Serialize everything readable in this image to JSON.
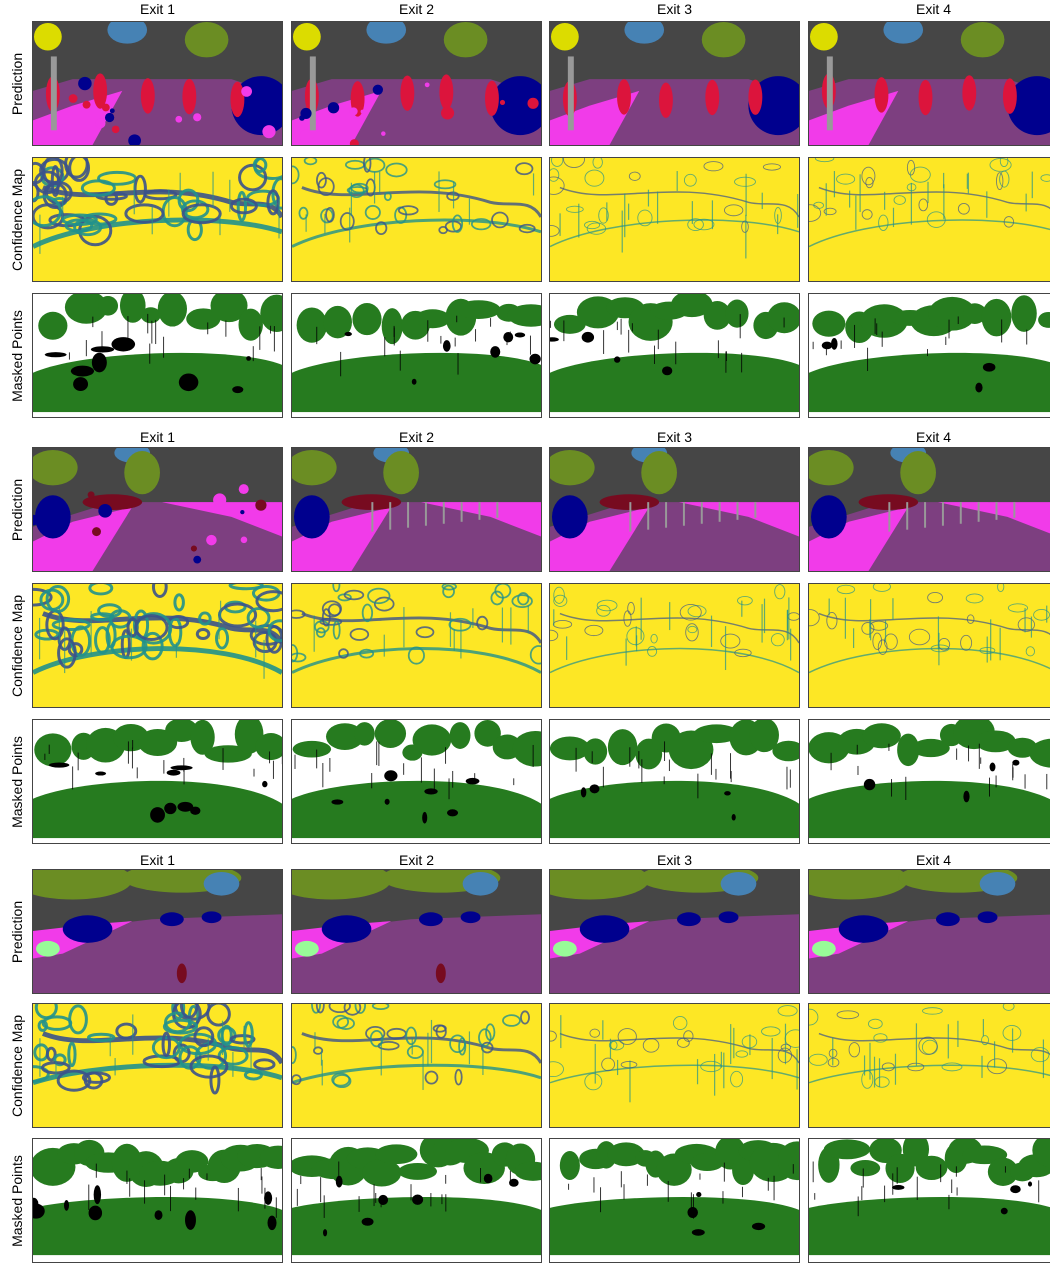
{
  "blocks": [
    {
      "exit_titles": [
        "Exit 1",
        "Exit 2",
        "Exit 3",
        "Exit 4"
      ],
      "row_labels": [
        "Prediction",
        "Confidence Map",
        "Masked Points"
      ]
    },
    {
      "exit_titles": [
        "Exit 1",
        "Exit 2",
        "Exit 3",
        "Exit 4"
      ],
      "row_labels": [
        "Prediction",
        "Confidence Map",
        "Masked Points"
      ]
    },
    {
      "exit_titles": [
        "Exit 1",
        "Exit 2",
        "Exit 3",
        "Exit 4"
      ],
      "row_labels": [
        "Prediction",
        "Confidence Map",
        "Masked Points"
      ]
    }
  ],
  "colors": {
    "road": "#7d3f80",
    "sidewalk": "#f13be9",
    "building": "#464646",
    "vegetation": "#6b8d23",
    "sky": "#4682b4",
    "car": "#00008e",
    "person": "#dc143c",
    "rider": "#ff0000",
    "bicycle": "#770b20",
    "pole": "#999999",
    "terrain": "#98fb98",
    "sign": "#dcdc00",
    "conf_high": "#fde725",
    "conf_mid": "#21918c",
    "conf_low": "#3b528b",
    "masked": "#267b1f",
    "unmasked": "#ffffff",
    "dark": "#000000"
  }
}
